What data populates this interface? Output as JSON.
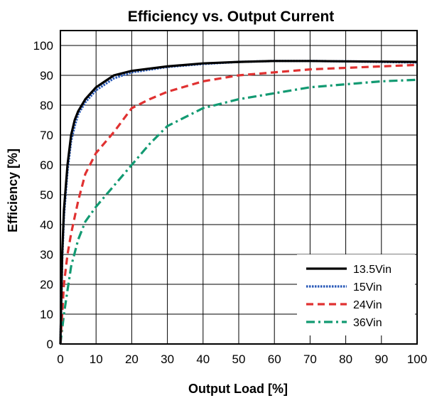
{
  "chart_data": {
    "type": "line",
    "title": "Efficiency vs. Output Current",
    "xlabel": "Output Load [%]",
    "ylabel": "Efficiency [%]",
    "xlim": [
      0,
      100
    ],
    "ylim": [
      0,
      105
    ],
    "xticks": [
      0,
      10,
      20,
      30,
      40,
      50,
      60,
      70,
      80,
      90,
      100
    ],
    "yticks": [
      0,
      10,
      20,
      30,
      40,
      50,
      60,
      70,
      80,
      90,
      100
    ],
    "grid": true,
    "legend_position": "bottom-right",
    "series": [
      {
        "name": "13.5Vin",
        "color": "#000000",
        "style": "solid",
        "x": [
          0,
          0.5,
          1,
          2,
          3,
          4,
          5,
          7,
          10,
          15,
          20,
          30,
          40,
          50,
          60,
          70,
          80,
          90,
          100
        ],
        "y": [
          0,
          30,
          45,
          60,
          70,
          75,
          78,
          82,
          86,
          90,
          91.5,
          93,
          94,
          94.5,
          94.8,
          94.8,
          94.7,
          94.6,
          94.5
        ]
      },
      {
        "name": "15Vin",
        "color": "#2a5ab8",
        "style": "dotted",
        "x": [
          0,
          0.5,
          1,
          2,
          3,
          4,
          5,
          7,
          10,
          15,
          20,
          30,
          40,
          50,
          60,
          70,
          80,
          90,
          100
        ],
        "y": [
          0,
          28,
          43,
          58,
          68,
          73,
          77,
          81,
          85,
          89,
          91,
          92.8,
          93.8,
          94.5,
          94.8,
          94.8,
          94.7,
          94.5,
          94.3
        ]
      },
      {
        "name": "24Vin",
        "color": "#e03131",
        "style": "dashed",
        "x": [
          0,
          1,
          2,
          3,
          5,
          7,
          10,
          15,
          20,
          25,
          30,
          40,
          50,
          60,
          70,
          80,
          90,
          100
        ],
        "y": [
          0,
          20,
          30,
          37,
          48,
          57,
          64,
          71,
          79,
          82,
          84.5,
          88,
          90,
          91,
          92,
          92.5,
          93,
          93.5
        ]
      },
      {
        "name": "36Vin",
        "color": "#129a72",
        "style": "dashdot",
        "x": [
          0,
          1,
          2,
          3,
          5,
          7,
          10,
          15,
          20,
          25,
          30,
          35,
          40,
          50,
          60,
          70,
          80,
          90,
          100
        ],
        "y": [
          0,
          10,
          18,
          26,
          35,
          41,
          46,
          53,
          60,
          67,
          73,
          76,
          79,
          82,
          84,
          86,
          87,
          88,
          88.5
        ]
      }
    ]
  }
}
